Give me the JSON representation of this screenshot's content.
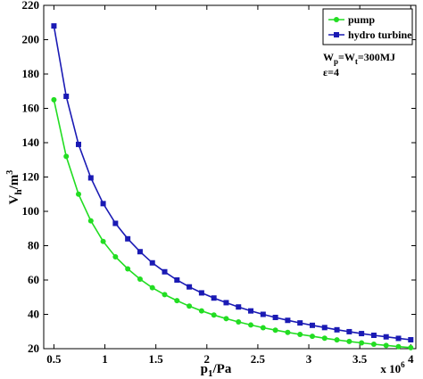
{
  "chart_data": {
    "type": "line",
    "xlabel_main": "p",
    "xlabel_sub": "1",
    "xlabel_rest": "/Pa",
    "ylabel_main": "V",
    "ylabel_sub": "h",
    "ylabel_rest": "/m",
    "ylabel_sup": "3",
    "x_multiplier_base": "x 10",
    "x_multiplier_exp": "6",
    "xlim": [
      0.4,
      4.05
    ],
    "ylim": [
      20,
      220
    ],
    "xticks": [
      0.5,
      1,
      1.5,
      2,
      2.5,
      3,
      3.5,
      4
    ],
    "xtick_labels": [
      "0.5",
      "1",
      "1.5",
      "2",
      "2.5",
      "3",
      "3.5",
      "4"
    ],
    "yticks": [
      20,
      40,
      60,
      80,
      100,
      120,
      140,
      160,
      180,
      200,
      220
    ],
    "ytick_labels": [
      "20",
      "40",
      "60",
      "80",
      "100",
      "120",
      "140",
      "160",
      "180",
      "200",
      "220"
    ],
    "grid": false,
    "legend_position": "top-right",
    "annotations": [
      {
        "main": "W",
        "sub": "p",
        "mid": "=W",
        "sub2": "t",
        "rest": "=300MJ"
      },
      {
        "main": "ε=4"
      }
    ],
    "series": [
      {
        "name": "pump",
        "color": "#22dd22",
        "marker": "circle",
        "x": [
          0.5,
          0.6207,
          0.7414,
          0.8621,
          0.9828,
          1.1034,
          1.2241,
          1.3448,
          1.4655,
          1.5862,
          1.7069,
          1.8276,
          1.9483,
          2.069,
          2.1897,
          2.3103,
          2.431,
          2.5517,
          2.6724,
          2.7931,
          2.9138,
          3.0345,
          3.1552,
          3.2759,
          3.3966,
          3.5172,
          3.6379,
          3.7586,
          3.8793,
          4.0
        ],
        "y": [
          165,
          132,
          110,
          94.5,
          82.5,
          73.5,
          66.5,
          60.5,
          55.5,
          51.5,
          48,
          44.8,
          42,
          39.6,
          37.5,
          35.6,
          33.8,
          32.2,
          30.8,
          29.5,
          28.3,
          27.2,
          26.1,
          25.1,
          24.2,
          23.4,
          22.6,
          21.9,
          21.2,
          20.6
        ]
      },
      {
        "name": "hydro turbine",
        "color": "#1a1ab4",
        "marker": "square",
        "x": [
          0.5,
          0.6207,
          0.7414,
          0.8621,
          0.9828,
          1.1034,
          1.2241,
          1.3448,
          1.4655,
          1.5862,
          1.7069,
          1.8276,
          1.9483,
          2.069,
          2.1897,
          2.3103,
          2.431,
          2.5517,
          2.6724,
          2.7931,
          2.9138,
          3.0345,
          3.1552,
          3.2759,
          3.3966,
          3.5172,
          3.6379,
          3.7586,
          3.8793,
          4.0
        ],
        "y": [
          208,
          167,
          139,
          119.5,
          104.5,
          93,
          84,
          76.5,
          70,
          64.8,
          60,
          56,
          52.5,
          49.5,
          46.8,
          44.3,
          42,
          40,
          38.2,
          36.5,
          35,
          33.6,
          32.3,
          31,
          29.9,
          28.8,
          27.8,
          26.9,
          26,
          25.2
        ]
      }
    ]
  }
}
